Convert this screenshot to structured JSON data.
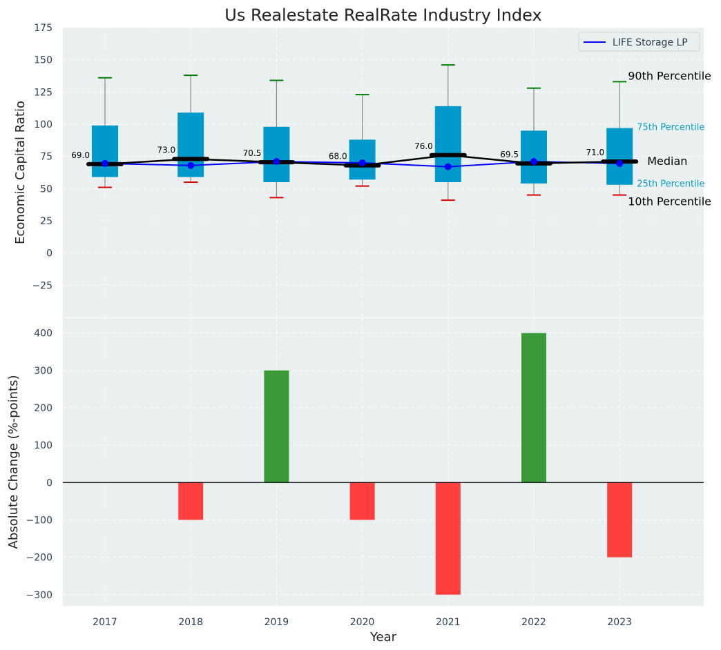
{
  "chart_data": [
    {
      "type": "box",
      "title": "Us Realestate RealRate Industry Index",
      "ylabel": "Economic Capital Ratio",
      "ylim": [
        -50,
        175
      ],
      "yticks": [
        -25,
        0,
        25,
        50,
        75,
        100,
        125,
        150,
        175
      ],
      "grid": true,
      "categories": [
        "2017",
        "2018",
        "2019",
        "2020",
        "2021",
        "2022",
        "2023"
      ],
      "boxes": [
        {
          "year": "2017",
          "p10": 51,
          "p25": 59,
          "median": 69.0,
          "p75": 99,
          "p90": 136
        },
        {
          "year": "2018",
          "p10": 55,
          "p25": 59,
          "median": 73.0,
          "p75": 109,
          "p90": 138
        },
        {
          "year": "2019",
          "p10": 43,
          "p25": 55,
          "median": 70.5,
          "p75": 98,
          "p90": 134
        },
        {
          "year": "2020",
          "p10": 52,
          "p25": 57,
          "median": 68.0,
          "p75": 88,
          "p90": 123
        },
        {
          "year": "2021",
          "p10": 41,
          "p25": 55,
          "median": 76.0,
          "p75": 114,
          "p90": 146
        },
        {
          "year": "2022",
          "p10": 45,
          "p25": 54,
          "median": 69.5,
          "p75": 95,
          "p90": 128
        },
        {
          "year": "2023",
          "p10": 45,
          "p25": 53,
          "median": 71.0,
          "p75": 97,
          "p90": 133
        }
      ],
      "median_labels": [
        "69.0",
        "73.0",
        "70.5",
        "68.0",
        "76.0",
        "69.5",
        "71.0"
      ],
      "series": [
        {
          "name": "LIFE Storage LP",
          "values": [
            69.5,
            68,
            71,
            70,
            67,
            71,
            69.5
          ],
          "color": "#0000ff"
        }
      ],
      "legend": {
        "position": "top-right",
        "entries": [
          "LIFE Storage LP"
        ]
      },
      "annotations": {
        "p90": "90th Percentile",
        "p75": "75th Percentile",
        "median": "Median",
        "p25": "25th Percentile",
        "p10": "10th Percentile"
      },
      "colors": {
        "box": "#0099cc",
        "whisker_top": "#008000",
        "whisker_bottom": "#dd0000",
        "median_line": "#000000",
        "company_line": "#0000ff",
        "background": "#eaeff0"
      }
    },
    {
      "type": "bar",
      "xlabel": "Year",
      "ylabel": "Absolute Change (%-points)",
      "ylim": [
        -330,
        440
      ],
      "yticks": [
        -300,
        -200,
        -100,
        0,
        100,
        200,
        300,
        400
      ],
      "grid": true,
      "categories": [
        "2017",
        "2018",
        "2019",
        "2020",
        "2021",
        "2022",
        "2023"
      ],
      "values": [
        0,
        -100,
        300,
        -100,
        -300,
        400,
        -200
      ],
      "colors": {
        "positive": "#3a9a3a",
        "negative": "#ff3e3e",
        "zero_line": "#000000"
      }
    }
  ]
}
